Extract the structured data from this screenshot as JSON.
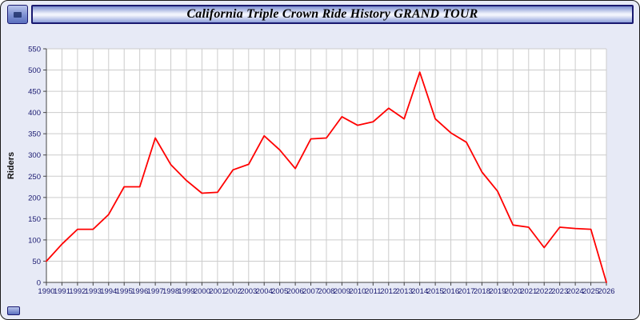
{
  "title": "California Triple Crown Ride History GRAND TOUR",
  "chart_data": {
    "type": "line",
    "title": "California Triple Crown Ride History GRAND TOUR",
    "xlabel": "",
    "ylabel": "Riders",
    "ylim": [
      0,
      550
    ],
    "ytick_step": 50,
    "grid": true,
    "legend": "none",
    "line_color": "#ff0000",
    "label_color": "#191970",
    "axis_color": "#444444",
    "grid_color": "#cccccc",
    "plot_bg": "#ffffff",
    "x": [
      1990,
      1991,
      1992,
      1993,
      1994,
      1995,
      1996,
      1997,
      1998,
      1999,
      2000,
      2001,
      2002,
      2003,
      2004,
      2005,
      2006,
      2007,
      2008,
      2009,
      2010,
      2011,
      2012,
      2013,
      2014,
      2015,
      2016,
      2017,
      2018,
      2019,
      2020,
      2021,
      2022,
      2023,
      2024,
      2025,
      2026
    ],
    "values": [
      50,
      90,
      125,
      125,
      160,
      225,
      225,
      340,
      277,
      240,
      210,
      212,
      265,
      278,
      345,
      312,
      268,
      338,
      340,
      390,
      370,
      378,
      410,
      385,
      495,
      385,
      352,
      330,
      260,
      215,
      135,
      130,
      82,
      130,
      127,
      125,
      0
    ]
  }
}
